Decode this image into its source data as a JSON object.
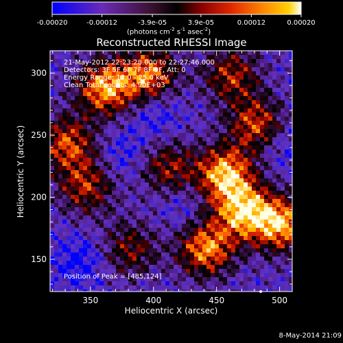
{
  "colorbar": {
    "tick_labels": [
      "-0.00020",
      "-0.00012",
      "-3.9e-05",
      "3.9e-05",
      "0.00012",
      "0.00020"
    ],
    "tick_values": [
      -0.0002,
      -0.00012,
      -3.9e-05,
      3.9e-05,
      0.00012,
      0.0002
    ],
    "range": [
      -0.0002,
      0.0002
    ],
    "units_prefix": "(photons cm",
    "units_exp1": "-2",
    "units_mid": " s",
    "units_exp2": "-1",
    "units_mid2": " asec",
    "units_exp3": "-2",
    "units_suffix": ")",
    "colors": [
      "#0000ff",
      "#6a2bb8",
      "#4a1a2a",
      "#000000",
      "#7a0000",
      "#d82000",
      "#ff6a00",
      "#ffb400",
      "#ffffff"
    ]
  },
  "chart_data": {
    "type": "heatmap",
    "title": "Reconstructed RHESSI Image",
    "xlabel": "Heliocentric X (arcsec)",
    "ylabel": "Heliocentric Y (arcsec)",
    "xlim": [
      318,
      510
    ],
    "ylim": [
      124,
      318
    ],
    "xticks": [
      350,
      400,
      450,
      500
    ],
    "yticks": [
      150,
      200,
      250,
      300
    ],
    "annotations": [
      "21-May-2012 22:23:28.000 to 22:27:46.000",
      "Detectors: 3F 5F 6F 7F 8F 9F, Att: 0",
      "Energy Range: 12.0 - 25.0 keV",
      "Clean     Total counts: 4.90E+03"
    ],
    "peak_text": "Position of Peak = [485,124]",
    "peak": [
      485,
      124
    ]
  },
  "footer": {
    "timestamp": "8-May-2014 21:09"
  }
}
